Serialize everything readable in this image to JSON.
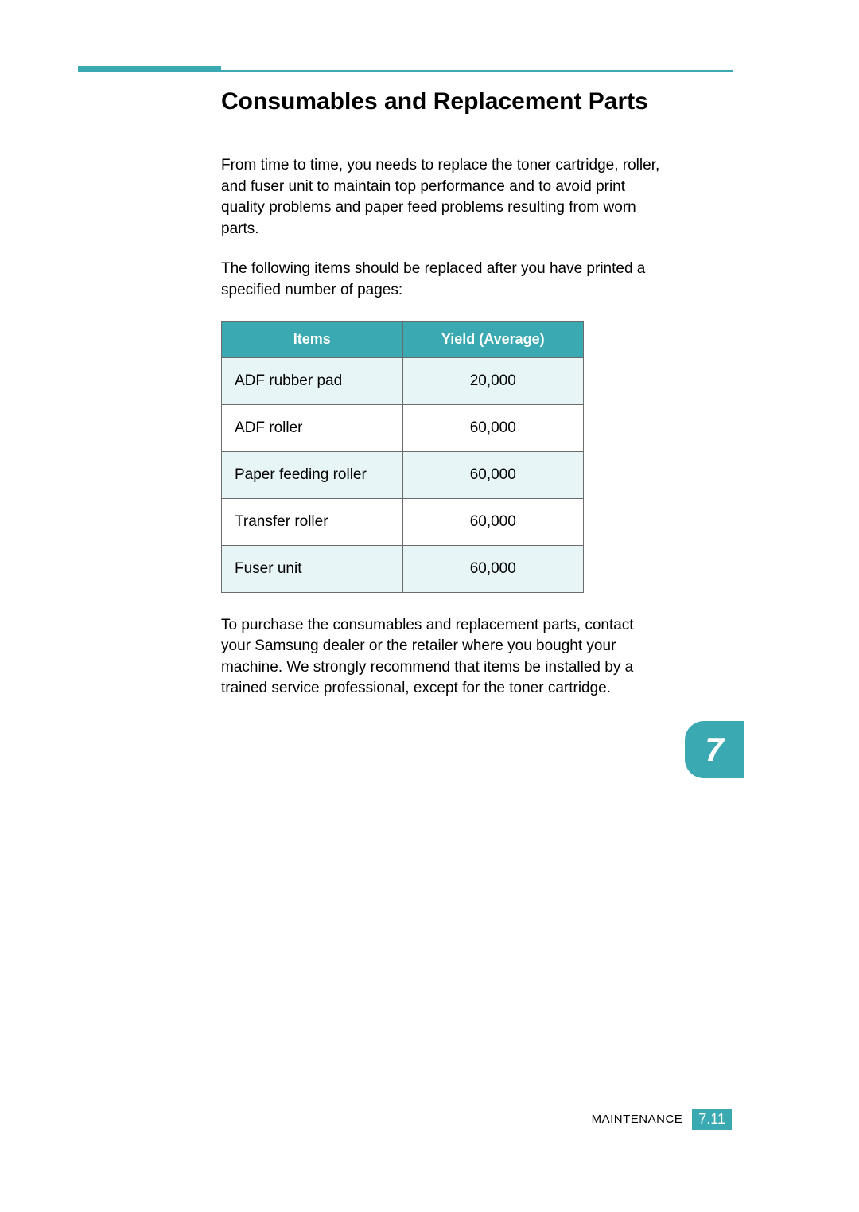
{
  "heading": "Consumables and Replacement Parts",
  "paragraphs": {
    "p1": "From time to time, you needs to replace the toner cartridge, roller, and fuser unit to maintain top performance and to avoid print quality problems and paper feed problems resulting from worn parts.",
    "p2": "The following items should be replaced after you have printed a specified number of pages:",
    "p3": "To purchase the consumables and replacement parts, contact your Samsung dealer or the retailer where you bought your machine. We strongly recommend that items be installed by a trained service professional, except for the toner cartridge."
  },
  "table": {
    "headers": {
      "items": "Items",
      "yield": "Yield (Average)"
    },
    "rows": [
      {
        "item": "ADF rubber pad",
        "yield": "20,000"
      },
      {
        "item": "ADF roller",
        "yield": "60,000"
      },
      {
        "item": "Paper feeding roller",
        "yield": "60,000"
      },
      {
        "item": "Transfer roller",
        "yield": "60,000"
      },
      {
        "item": "Fuser unit",
        "yield": "60,000"
      }
    ],
    "header_bg": "#3aa9b2",
    "header_color": "#ffffff",
    "row_odd_bg": "#e8f5f6",
    "row_even_bg": "#ffffff",
    "border_color": "#6b6b6b"
  },
  "chapter_tab": "7",
  "footer": {
    "label": "MAINTENANCE",
    "page": "7.11"
  },
  "colors": {
    "accent": "#3aa9b2",
    "text": "#000000",
    "background": "#ffffff"
  }
}
